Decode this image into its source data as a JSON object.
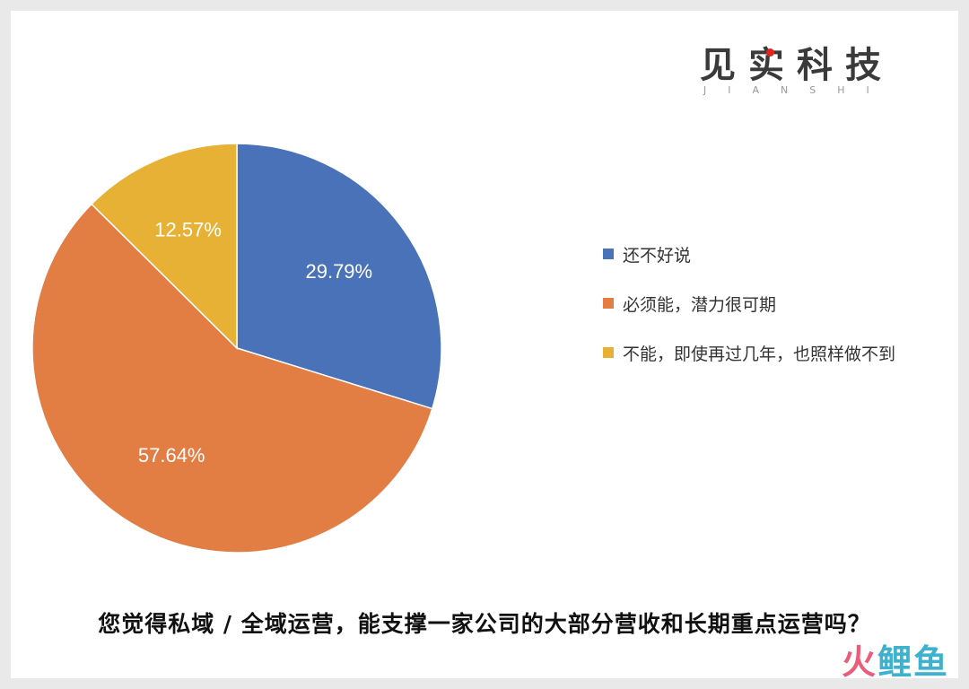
{
  "brand": {
    "name": "见实科技",
    "subtitle": "JIANSHI"
  },
  "chart_data": {
    "type": "pie",
    "categories": [
      "还不好说",
      "必须能，潜力很可期",
      "不能，即使再过几年，也照样做不到"
    ],
    "values": [
      29.79,
      57.64,
      12.57
    ],
    "labels": [
      "29.79%",
      "57.64%",
      "12.57%"
    ],
    "colors": [
      "#4a72b8",
      "#e27d43",
      "#e7b135"
    ],
    "legend_position": "right"
  },
  "question": "您觉得私域 / 全域运营，能支撑一家公司的大部分营收和长期重点运营吗？",
  "watermark": {
    "part1": "火",
    "part2": "鲤鱼"
  }
}
